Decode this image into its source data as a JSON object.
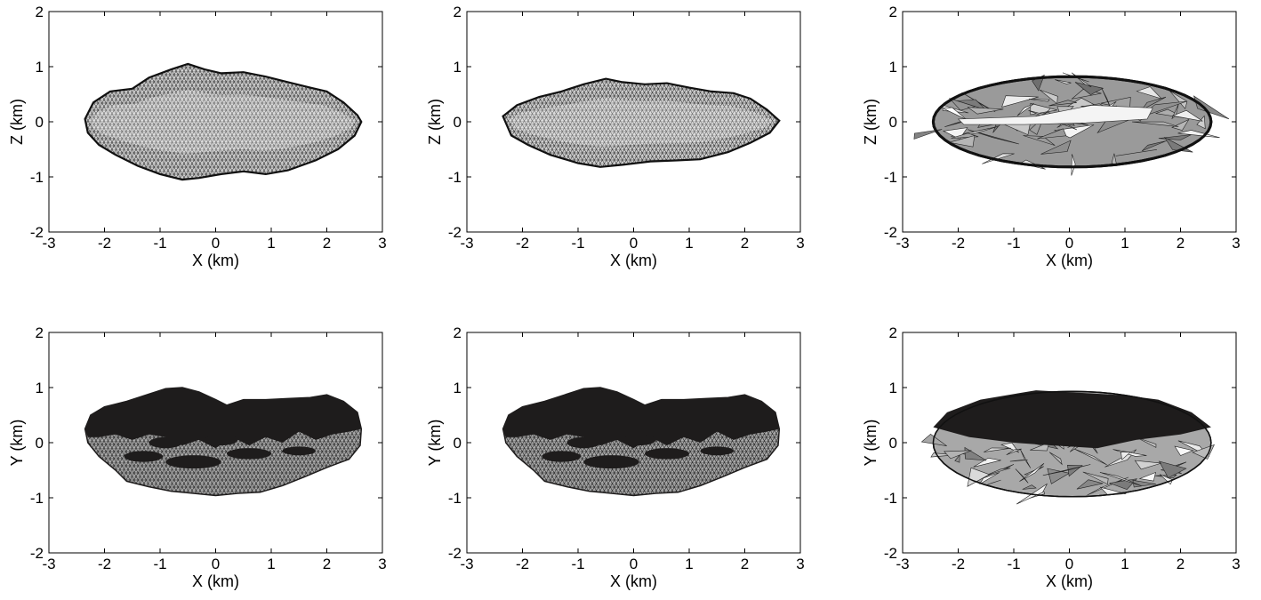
{
  "figure": {
    "panels": [
      {
        "id": "panel-1",
        "xlabel": "X (km)",
        "ylabel": "Z (km)",
        "style": "mesh-fine",
        "view": "side"
      },
      {
        "id": "panel-2",
        "xlabel": "X (km)",
        "ylabel": "Z (km)",
        "style": "mesh-fine",
        "view": "side-thin"
      },
      {
        "id": "panel-3",
        "xlabel": "X (km)",
        "ylabel": "Z (km)",
        "style": "facets-coarse",
        "view": "ellipse"
      },
      {
        "id": "panel-4",
        "xlabel": "X (km)",
        "ylabel": "Y (km)",
        "style": "mesh-shadowed",
        "view": "top"
      },
      {
        "id": "panel-5",
        "xlabel": "X (km)",
        "ylabel": "Y (km)",
        "style": "mesh-shadowed",
        "view": "top"
      },
      {
        "id": "panel-6",
        "xlabel": "X (km)",
        "ylabel": "Y (km)",
        "style": "facets-shadowed",
        "view": "top-ellipse"
      }
    ],
    "x_ticks": [
      "-3",
      "-2",
      "-1",
      "0",
      "1",
      "2",
      "3"
    ],
    "y_ticks": [
      "-2",
      "-1",
      "0",
      "1",
      "2"
    ],
    "xlim": [
      -3,
      3
    ],
    "ylim": [
      -2,
      2
    ],
    "colors": {
      "dark": "#1e1c1c",
      "mesh_fill": "#c8c8c8",
      "facet_light": "#d9d9d9",
      "facet_mid": "#8e8e8e",
      "edge": "#111111"
    }
  }
}
